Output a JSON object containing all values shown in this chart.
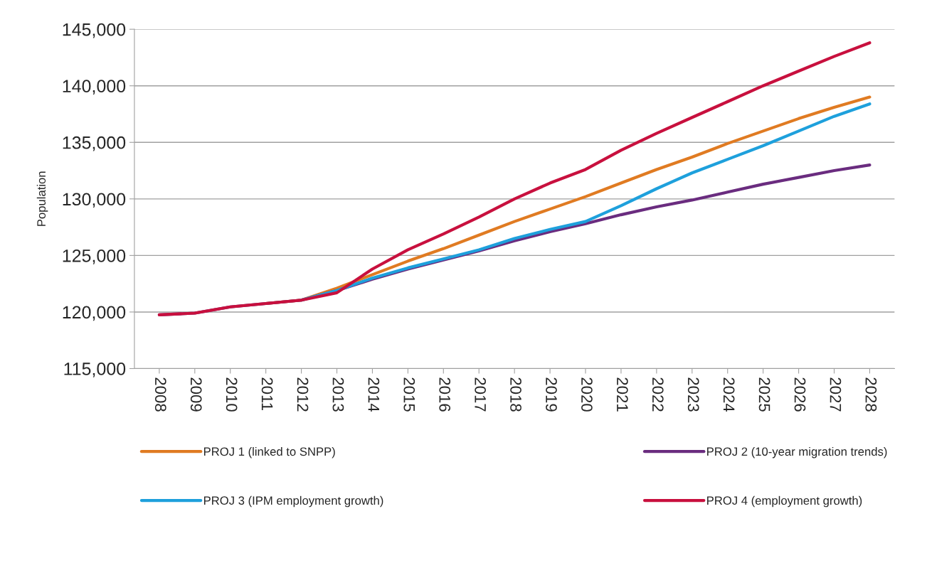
{
  "chart_data": {
    "type": "line",
    "ylabel": "Population",
    "categories": [
      "2008",
      "2009",
      "2010",
      "2011",
      "2012",
      "2013",
      "2014",
      "2015",
      "2016",
      "2017",
      "2018",
      "2019",
      "2020",
      "2021",
      "2022",
      "2023",
      "2024",
      "2025",
      "2026",
      "2027",
      "2028"
    ],
    "series": [
      {
        "name": "PROJ 1 (linked to SNPP)",
        "color": "#e07b22",
        "values": [
          null,
          null,
          null,
          120750,
          121050,
          122100,
          123300,
          124500,
          125600,
          126800,
          128000,
          129100,
          130200,
          131400,
          132600,
          133700,
          134900,
          136000,
          137100,
          138100,
          139000
        ]
      },
      {
        "name": "PROJ 2 (10-year migration trends)",
        "color": "#6a2c7f",
        "values": [
          119750,
          119900,
          120450,
          120750,
          121050,
          121900,
          122900,
          123800,
          124600,
          125400,
          126300,
          127100,
          127800,
          128600,
          129300,
          129900,
          130600,
          131300,
          131900,
          132500,
          133000
        ]
      },
      {
        "name": "PROJ 3 (IPM employment growth)",
        "color": "#1ea0dc",
        "values": [
          null,
          null,
          null,
          null,
          121050,
          121900,
          123000,
          123900,
          124700,
          125500,
          126500,
          127300,
          128000,
          129400,
          130900,
          132300,
          133500,
          134700,
          136000,
          137300,
          138400
        ]
      },
      {
        "name": "PROJ 4 (employment growth)",
        "color": "#c8103e",
        "values": [
          119750,
          119900,
          120450,
          120750,
          121050,
          121700,
          123800,
          125500,
          126900,
          128400,
          130000,
          131400,
          132600,
          134300,
          135800,
          137200,
          138600,
          140000,
          141300,
          142600,
          143800
        ]
      }
    ],
    "ylim": [
      115000,
      145000
    ],
    "yticks": [
      {
        "value": 115000,
        "label": "115,000"
      },
      {
        "value": 120000,
        "label": "120,000"
      },
      {
        "value": 125000,
        "label": "125,000"
      },
      {
        "value": 130000,
        "label": "130,000"
      },
      {
        "value": 135000,
        "label": "135,000"
      },
      {
        "value": 140000,
        "label": "140,000"
      },
      {
        "value": 145000,
        "label": "145,000"
      }
    ],
    "grid": "y",
    "legend": "bottom",
    "marker": "none",
    "line_style": "solid"
  }
}
